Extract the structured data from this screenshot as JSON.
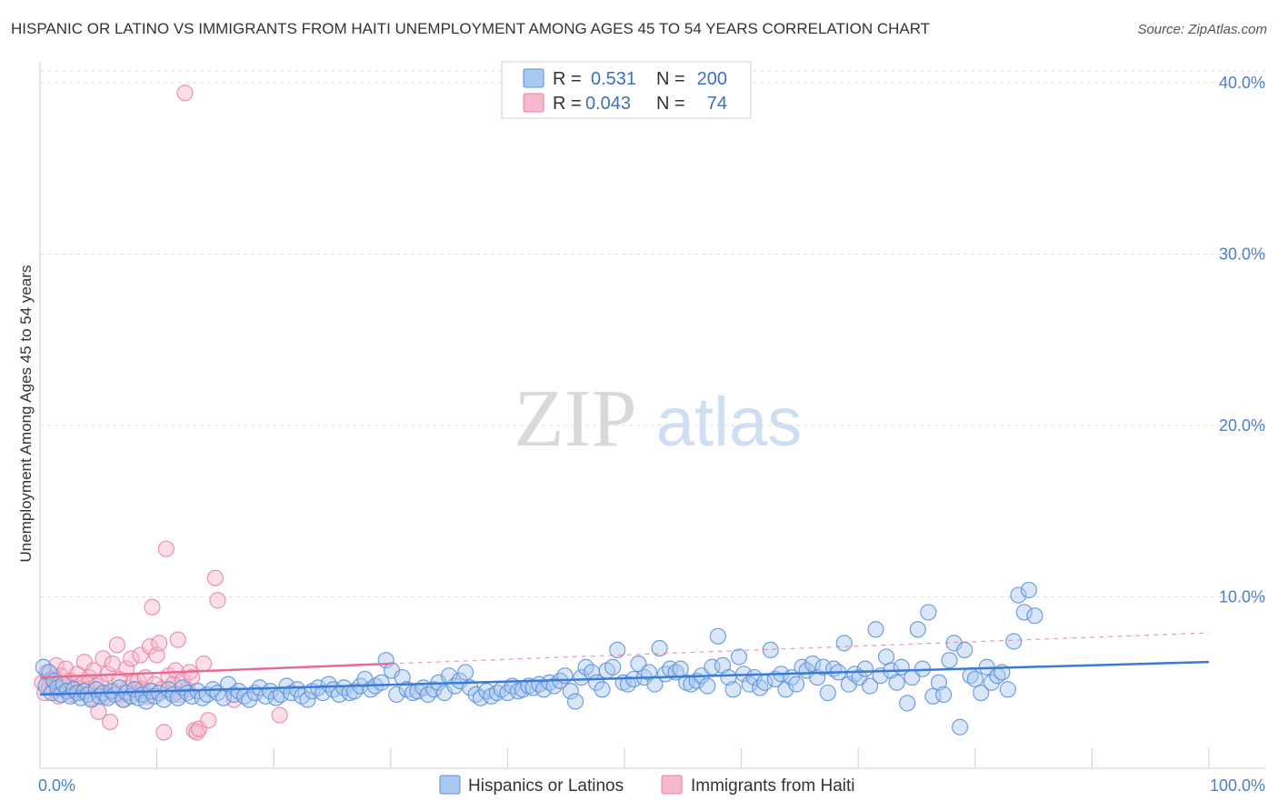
{
  "title": "HISPANIC OR LATINO VS IMMIGRANTS FROM HAITI UNEMPLOYMENT AMONG AGES 45 TO 54 YEARS CORRELATION CHART",
  "source": "Source: ZipAtlas.com",
  "watermark": {
    "zip": "ZIP",
    "atlas": "atlas"
  },
  "colors": {
    "blue_fill": "#a8c8f0",
    "blue_stroke": "#5b8fd6",
    "blue_line": "#3a7bd5",
    "pink_fill": "#f6b8cc",
    "pink_stroke": "#e8819f",
    "pink_line": "#e86b92",
    "tick_text": "#4a7fcf",
    "grid": "#dddddd"
  },
  "stats_legend": {
    "rows": [
      {
        "r_label": "R =",
        "r_value": "0.531",
        "n_label": "N =",
        "n_value": "200",
        "color": "blue"
      },
      {
        "r_label": "R =",
        "r_value": "0.043",
        "n_label": "N =",
        "n_value": "74",
        "color": "pink"
      }
    ]
  },
  "chart_data": {
    "type": "scatter",
    "title": "HISPANIC OR LATINO VS IMMIGRANTS FROM HAITI UNEMPLOYMENT AMONG AGES 45 TO 54 YEARS CORRELATION CHART",
    "xlabel": "",
    "ylabel": "Unemployment Among Ages 45 to 54 years",
    "xlim": [
      0,
      100
    ],
    "ylim": [
      0,
      41
    ],
    "x_tick_labels": [
      "0.0%",
      "100.0%"
    ],
    "y_ticks": [
      10,
      20,
      30,
      40
    ],
    "y_tick_labels": [
      "10.0%",
      "20.0%",
      "30.0%",
      "40.0%"
    ],
    "grid": true,
    "legend_position": "bottom",
    "series": [
      {
        "name": "Hispanics or Latinos",
        "color": "blue",
        "R": 0.531,
        "N": 200,
        "trend": {
          "x": [
            0,
            100
          ],
          "y": [
            4.3,
            6.2
          ]
        },
        "points": [
          [
            0.3,
            5.9
          ],
          [
            0.5,
            4.8
          ],
          [
            0.8,
            5.6
          ],
          [
            1.0,
            4.4
          ],
          [
            1.2,
            5.1
          ],
          [
            1.5,
            4.7
          ],
          [
            1.8,
            4.3
          ],
          [
            2.0,
            4.9
          ],
          [
            2.3,
            4.5
          ],
          [
            2.6,
            4.2
          ],
          [
            2.9,
            4.6
          ],
          [
            3.2,
            4.4
          ],
          [
            3.5,
            4.1
          ],
          [
            3.8,
            4.5
          ],
          [
            4.1,
            4.3
          ],
          [
            4.4,
            4.0
          ],
          [
            4.8,
            4.6
          ],
          [
            5.1,
            4.2
          ],
          [
            5.4,
            4.4
          ],
          [
            5.8,
            4.1
          ],
          [
            6.1,
            4.5
          ],
          [
            6.4,
            4.3
          ],
          [
            6.8,
            4.7
          ],
          [
            7.1,
            4.0
          ],
          [
            7.4,
            4.4
          ],
          [
            7.8,
            4.2
          ],
          [
            8.1,
            4.6
          ],
          [
            8.4,
            4.1
          ],
          [
            8.8,
            4.3
          ],
          [
            9.1,
            3.9
          ],
          [
            9.5,
            4.5
          ],
          [
            9.8,
            4.2
          ],
          [
            10.2,
            4.4
          ],
          [
            10.6,
            4.0
          ],
          [
            11.0,
            4.6
          ],
          [
            11.4,
            4.3
          ],
          [
            11.8,
            4.1
          ],
          [
            12.2,
            4.7
          ],
          [
            12.6,
            4.4
          ],
          [
            13.0,
            4.2
          ],
          [
            13.5,
            4.5
          ],
          [
            13.9,
            4.1
          ],
          [
            14.3,
            4.3
          ],
          [
            14.8,
            4.6
          ],
          [
            15.2,
            4.4
          ],
          [
            15.7,
            4.1
          ],
          [
            16.1,
            4.9
          ],
          [
            16.6,
            4.3
          ],
          [
            17.0,
            4.5
          ],
          [
            17.5,
            4.2
          ],
          [
            17.9,
            4.0
          ],
          [
            18.4,
            4.4
          ],
          [
            18.8,
            4.7
          ],
          [
            19.3,
            4.2
          ],
          [
            19.7,
            4.5
          ],
          [
            20.2,
            4.1
          ],
          [
            20.6,
            4.3
          ],
          [
            21.1,
            4.8
          ],
          [
            21.5,
            4.4
          ],
          [
            22.0,
            4.6
          ],
          [
            22.4,
            4.2
          ],
          [
            22.9,
            4.0
          ],
          [
            23.3,
            4.5
          ],
          [
            23.8,
            4.7
          ],
          [
            24.2,
            4.4
          ],
          [
            24.7,
            4.9
          ],
          [
            25.1,
            4.6
          ],
          [
            25.6,
            4.3
          ],
          [
            26.0,
            4.7
          ],
          [
            26.5,
            4.4
          ],
          [
            26.9,
            4.5
          ],
          [
            27.4,
            4.8
          ],
          [
            27.8,
            5.2
          ],
          [
            28.3,
            4.6
          ],
          [
            28.7,
            4.8
          ],
          [
            29.2,
            5.0
          ],
          [
            29.6,
            6.3
          ],
          [
            30.1,
            5.7
          ],
          [
            30.5,
            4.3
          ],
          [
            31.0,
            5.3
          ],
          [
            31.4,
            4.6
          ],
          [
            31.9,
            4.4
          ],
          [
            32.3,
            4.5
          ],
          [
            32.8,
            4.7
          ],
          [
            33.2,
            4.3
          ],
          [
            33.7,
            4.6
          ],
          [
            34.1,
            5.0
          ],
          [
            34.6,
            4.4
          ],
          [
            35.0,
            5.4
          ],
          [
            35.5,
            4.8
          ],
          [
            35.9,
            5.1
          ],
          [
            36.4,
            5.6
          ],
          [
            36.8,
            4.7
          ],
          [
            37.3,
            4.3
          ],
          [
            37.7,
            4.1
          ],
          [
            38.2,
            4.5
          ],
          [
            38.6,
            4.2
          ],
          [
            39.1,
            4.4
          ],
          [
            39.5,
            4.6
          ],
          [
            40.0,
            4.4
          ],
          [
            40.4,
            4.8
          ],
          [
            40.9,
            4.5
          ],
          [
            41.3,
            4.6
          ],
          [
            41.8,
            4.8
          ],
          [
            42.2,
            4.7
          ],
          [
            42.7,
            4.9
          ],
          [
            43.1,
            4.6
          ],
          [
            43.6,
            5.0
          ],
          [
            44.0,
            4.8
          ],
          [
            44.5,
            5.1
          ],
          [
            44.9,
            5.4
          ],
          [
            45.4,
            4.5
          ],
          [
            45.8,
            3.9
          ],
          [
            46.3,
            5.3
          ],
          [
            46.7,
            5.9
          ],
          [
            47.2,
            5.6
          ],
          [
            47.6,
            5.0
          ],
          [
            48.1,
            4.6
          ],
          [
            48.5,
            5.7
          ],
          [
            49.0,
            5.9
          ],
          [
            49.4,
            6.9
          ],
          [
            49.9,
            5.0
          ],
          [
            50.3,
            4.9
          ],
          [
            50.8,
            5.2
          ],
          [
            51.2,
            6.1
          ],
          [
            51.7,
            5.3
          ],
          [
            52.1,
            5.6
          ],
          [
            52.6,
            4.9
          ],
          [
            53.0,
            7.0
          ],
          [
            53.5,
            5.5
          ],
          [
            53.9,
            5.8
          ],
          [
            54.4,
            5.6
          ],
          [
            54.8,
            5.8
          ],
          [
            55.3,
            5.0
          ],
          [
            55.7,
            4.9
          ],
          [
            56.2,
            5.1
          ],
          [
            56.6,
            5.4
          ],
          [
            57.1,
            4.8
          ],
          [
            57.5,
            5.9
          ],
          [
            58.0,
            7.7
          ],
          [
            58.4,
            6.0
          ],
          [
            58.9,
            5.3
          ],
          [
            59.3,
            4.6
          ],
          [
            59.8,
            6.5
          ],
          [
            60.2,
            5.5
          ],
          [
            60.7,
            4.9
          ],
          [
            61.1,
            5.3
          ],
          [
            61.6,
            4.7
          ],
          [
            62.0,
            5.0
          ],
          [
            62.5,
            6.9
          ],
          [
            62.9,
            5.2
          ],
          [
            63.4,
            5.5
          ],
          [
            63.8,
            4.6
          ],
          [
            64.3,
            5.3
          ],
          [
            64.7,
            4.9
          ],
          [
            65.2,
            5.9
          ],
          [
            65.6,
            5.7
          ],
          [
            66.1,
            6.1
          ],
          [
            66.5,
            5.3
          ],
          [
            67.0,
            5.9
          ],
          [
            67.4,
            4.4
          ],
          [
            67.9,
            5.8
          ],
          [
            68.3,
            5.6
          ],
          [
            68.8,
            7.3
          ],
          [
            69.2,
            4.9
          ],
          [
            69.7,
            5.5
          ],
          [
            70.1,
            5.3
          ],
          [
            70.6,
            5.8
          ],
          [
            71.0,
            4.8
          ],
          [
            71.5,
            8.1
          ],
          [
            71.9,
            5.4
          ],
          [
            72.4,
            6.5
          ],
          [
            72.8,
            5.7
          ],
          [
            73.3,
            5.0
          ],
          [
            73.7,
            5.9
          ],
          [
            74.2,
            3.8
          ],
          [
            74.6,
            5.3
          ],
          [
            75.1,
            8.1
          ],
          [
            75.5,
            5.8
          ],
          [
            76.0,
            9.1
          ],
          [
            76.4,
            4.2
          ],
          [
            76.9,
            5.0
          ],
          [
            77.3,
            4.3
          ],
          [
            77.8,
            6.3
          ],
          [
            78.2,
            7.3
          ],
          [
            78.7,
            2.4
          ],
          [
            79.1,
            6.9
          ],
          [
            79.6,
            5.4
          ],
          [
            80.0,
            5.2
          ],
          [
            80.5,
            4.4
          ],
          [
            81.0,
            5.9
          ],
          [
            81.4,
            5.0
          ],
          [
            81.9,
            5.4
          ],
          [
            82.3,
            5.6
          ],
          [
            82.8,
            4.6
          ],
          [
            83.3,
            7.4
          ],
          [
            83.7,
            10.1
          ],
          [
            84.2,
            9.1
          ],
          [
            84.6,
            10.4
          ],
          [
            85.1,
            8.9
          ]
        ]
      },
      {
        "name": "Immigrants from Haiti",
        "color": "pink",
        "R": 0.043,
        "N": 74,
        "trend": {
          "x": [
            0,
            30
          ],
          "y": [
            5.3,
            6.1
          ],
          "x_ext": [
            30,
            100
          ],
          "y_ext": [
            6.1,
            7.9
          ]
        },
        "points": [
          [
            0.2,
            5.0
          ],
          [
            0.4,
            4.4
          ],
          [
            0.6,
            5.6
          ],
          [
            0.8,
            4.8
          ],
          [
            1.0,
            5.2
          ],
          [
            1.2,
            4.6
          ],
          [
            1.4,
            6.0
          ],
          [
            1.6,
            4.2
          ],
          [
            1.8,
            5.4
          ],
          [
            2.0,
            4.9
          ],
          [
            2.2,
            5.8
          ],
          [
            2.4,
            4.5
          ],
          [
            2.6,
            5.1
          ],
          [
            2.8,
            4.3
          ],
          [
            3.0,
            4.7
          ],
          [
            3.2,
            5.5
          ],
          [
            3.4,
            4.4
          ],
          [
            3.6,
            4.9
          ],
          [
            3.8,
            6.2
          ],
          [
            4.0,
            4.6
          ],
          [
            4.2,
            5.3
          ],
          [
            4.4,
            4.1
          ],
          [
            4.6,
            5.7
          ],
          [
            4.8,
            4.8
          ],
          [
            5.0,
            3.3
          ],
          [
            5.2,
            5.0
          ],
          [
            5.4,
            6.4
          ],
          [
            5.6,
            4.2
          ],
          [
            5.8,
            5.5
          ],
          [
            6.0,
            2.7
          ],
          [
            6.2,
            6.1
          ],
          [
            6.4,
            4.5
          ],
          [
            6.6,
            7.2
          ],
          [
            6.8,
            5.2
          ],
          [
            7.0,
            4.3
          ],
          [
            7.2,
            4.0
          ],
          [
            7.4,
            5.8
          ],
          [
            7.6,
            4.7
          ],
          [
            7.8,
            6.4
          ],
          [
            8.0,
            5.0
          ],
          [
            8.2,
            4.4
          ],
          [
            8.4,
            5.1
          ],
          [
            8.6,
            6.6
          ],
          [
            8.8,
            4.6
          ],
          [
            9.0,
            5.3
          ],
          [
            9.2,
            4.2
          ],
          [
            9.4,
            7.1
          ],
          [
            9.6,
            9.4
          ],
          [
            9.8,
            4.9
          ],
          [
            10.0,
            6.6
          ],
          [
            10.2,
            7.3
          ],
          [
            10.4,
            4.6
          ],
          [
            10.6,
            2.1
          ],
          [
            10.8,
            12.8
          ],
          [
            11.0,
            5.4
          ],
          [
            11.2,
            4.4
          ],
          [
            11.4,
            4.9
          ],
          [
            11.6,
            5.7
          ],
          [
            11.8,
            7.5
          ],
          [
            12.0,
            4.3
          ],
          [
            12.2,
            5.1
          ],
          [
            12.4,
            39.4
          ],
          [
            12.6,
            4.6
          ],
          [
            12.8,
            5.6
          ],
          [
            13.0,
            5.3
          ],
          [
            13.2,
            2.2
          ],
          [
            13.4,
            2.1
          ],
          [
            13.6,
            2.3
          ],
          [
            14.0,
            6.1
          ],
          [
            14.4,
            2.8
          ],
          [
            15.0,
            11.1
          ],
          [
            15.2,
            9.8
          ],
          [
            16.6,
            4.0
          ],
          [
            20.5,
            3.1
          ]
        ]
      }
    ]
  },
  "bottom_legend": [
    {
      "label": "Hispanics or Latinos",
      "color": "blue"
    },
    {
      "label": "Immigrants from Haiti",
      "color": "pink"
    }
  ]
}
